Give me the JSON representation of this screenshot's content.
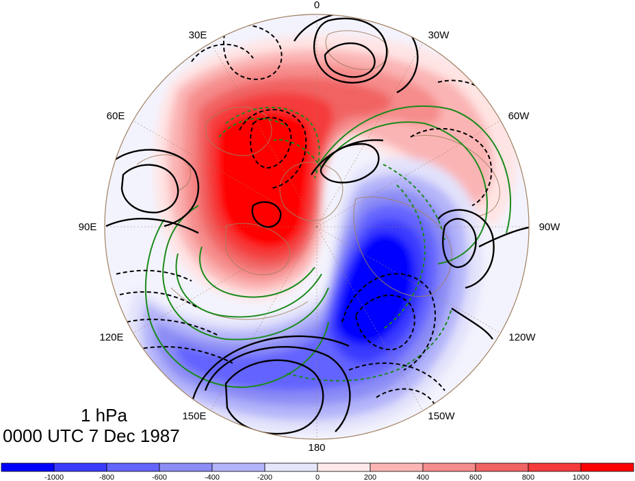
{
  "map": {
    "projection": "polar stereographic (north polar)",
    "longitude_labels": [
      "0",
      "30W",
      "60W",
      "90W",
      "120W",
      "150W",
      "180",
      "150E",
      "120E",
      "90E",
      "60E",
      "30E"
    ]
  },
  "annotation": {
    "level": "1 hPa",
    "time": "0000 UTC 7 Dec 1987"
  },
  "colorbar": {
    "min": -1200,
    "max": 1200,
    "step": 200,
    "tick_labels": [
      "-1000",
      "-800",
      "-600",
      "-400",
      "-200",
      "0",
      "200",
      "400",
      "600",
      "800",
      "1000"
    ],
    "colors": [
      "#0000ff",
      "#3b3bff",
      "#6464ff",
      "#8c8cf5",
      "#b4b4fa",
      "#e6e6fb",
      "#ffeaea",
      "#fbb4b4",
      "#f68c8c",
      "#f16464",
      "#f53b3b",
      "#ff0000"
    ]
  },
  "legend_colors": {
    "positive_anomaly": "#ff0000",
    "negative_anomaly": "#0000ff",
    "black_contours": "#000000",
    "green_contours": "#1a8a1a",
    "coastlines": "#a08060"
  }
}
